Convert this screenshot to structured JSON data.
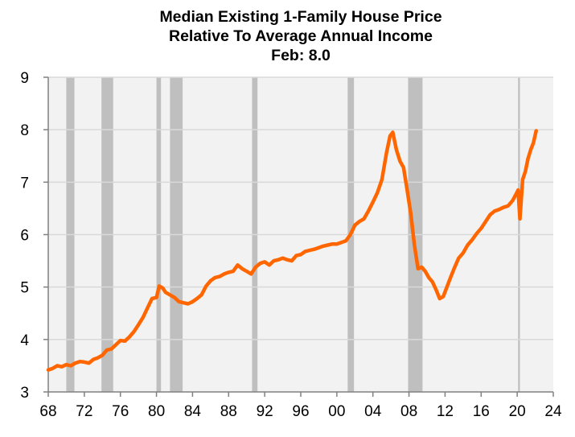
{
  "chart_data": {
    "type": "line",
    "title": "Median Existing 1-Family House Price",
    "subtitle": "Relative To Average Annual Income",
    "annotation": "Feb: 8.0",
    "xlabel": "",
    "ylabel": "",
    "xlim": [
      1968,
      2024
    ],
    "ylim": [
      3,
      9
    ],
    "grid": true,
    "legend": "none",
    "x_ticks": [
      1968,
      1972,
      1976,
      1980,
      1984,
      1988,
      1992,
      1996,
      2000,
      2004,
      2008,
      2012,
      2016,
      2020,
      2024
    ],
    "x_tick_labels": [
      "68",
      "72",
      "76",
      "80",
      "84",
      "88",
      "92",
      "96",
      "00",
      "04",
      "08",
      "12",
      "16",
      "20",
      "24"
    ],
    "y_ticks": [
      3,
      4,
      5,
      6,
      7,
      8,
      9
    ],
    "y_tick_labels": [
      "3",
      "4",
      "5",
      "6",
      "7",
      "8",
      "9"
    ],
    "colors": {
      "line": "#FF6600",
      "plot_bg": "#F2F2F2",
      "recession": "#BFBFBF",
      "grid": "#D9D9D9",
      "axis": "#808080"
    },
    "recessions": [
      [
        1970.0,
        1970.9
      ],
      [
        1973.9,
        1975.2
      ],
      [
        1980.0,
        1980.5
      ],
      [
        1981.5,
        1982.9
      ],
      [
        1990.6,
        1991.2
      ],
      [
        2001.2,
        2001.9
      ],
      [
        2007.9,
        2009.5
      ],
      [
        2020.1,
        2020.3
      ]
    ],
    "series": [
      {
        "name": "Median Existing 1-Family House Price / Average Annual Income",
        "x": [
          1968.0,
          1968.5,
          1969.0,
          1969.5,
          1970.0,
          1970.5,
          1971.0,
          1971.5,
          1972.0,
          1972.5,
          1973.0,
          1973.5,
          1974.0,
          1974.5,
          1975.0,
          1975.5,
          1976.0,
          1976.5,
          1977.0,
          1977.5,
          1978.0,
          1978.5,
          1979.0,
          1979.5,
          1980.0,
          1980.3,
          1980.7,
          1981.0,
          1981.5,
          1982.0,
          1982.5,
          1983.0,
          1983.5,
          1984.0,
          1984.5,
          1985.0,
          1985.5,
          1986.0,
          1986.5,
          1987.0,
          1987.5,
          1988.0,
          1988.5,
          1989.0,
          1989.5,
          1990.0,
          1990.5,
          1991.0,
          1991.5,
          1992.0,
          1992.5,
          1993.0,
          1993.5,
          1994.0,
          1994.5,
          1995.0,
          1995.5,
          1996.0,
          1996.5,
          1997.0,
          1997.5,
          1998.0,
          1998.5,
          1999.0,
          1999.5,
          2000.0,
          2000.5,
          2001.0,
          2001.5,
          2002.0,
          2002.5,
          2003.0,
          2003.5,
          2004.0,
          2004.5,
          2005.0,
          2005.5,
          2005.9,
          2006.2,
          2006.6,
          2007.0,
          2007.4,
          2007.8,
          2008.2,
          2008.6,
          2009.0,
          2009.4,
          2009.8,
          2010.2,
          2010.6,
          2011.0,
          2011.4,
          2011.8,
          2012.2,
          2012.6,
          2013.0,
          2013.5,
          2014.0,
          2014.5,
          2015.0,
          2015.5,
          2016.0,
          2016.5,
          2017.0,
          2017.5,
          2018.0,
          2018.5,
          2019.0,
          2019.5,
          2019.9,
          2020.1,
          2020.3,
          2020.6,
          2020.9,
          2021.2,
          2021.5,
          2021.8,
          2022.1
        ],
        "values": [
          3.42,
          3.45,
          3.5,
          3.48,
          3.52,
          3.5,
          3.55,
          3.58,
          3.57,
          3.55,
          3.62,
          3.65,
          3.7,
          3.8,
          3.82,
          3.9,
          3.98,
          3.97,
          4.05,
          4.15,
          4.28,
          4.42,
          4.6,
          4.78,
          4.8,
          5.02,
          4.98,
          4.9,
          4.85,
          4.8,
          4.72,
          4.7,
          4.68,
          4.72,
          4.78,
          4.85,
          5.02,
          5.12,
          5.18,
          5.2,
          5.25,
          5.28,
          5.3,
          5.42,
          5.35,
          5.3,
          5.25,
          5.38,
          5.45,
          5.48,
          5.42,
          5.5,
          5.52,
          5.55,
          5.52,
          5.5,
          5.6,
          5.62,
          5.68,
          5.7,
          5.72,
          5.75,
          5.78,
          5.8,
          5.82,
          5.82,
          5.85,
          5.88,
          6.0,
          6.18,
          6.25,
          6.3,
          6.45,
          6.62,
          6.8,
          7.05,
          7.55,
          7.88,
          7.95,
          7.62,
          7.4,
          7.28,
          6.85,
          6.4,
          5.8,
          5.35,
          5.38,
          5.3,
          5.18,
          5.1,
          4.95,
          4.78,
          4.82,
          5.0,
          5.18,
          5.35,
          5.55,
          5.65,
          5.8,
          5.9,
          6.02,
          6.12,
          6.25,
          6.38,
          6.45,
          6.48,
          6.52,
          6.55,
          6.65,
          6.78,
          6.85,
          6.3,
          7.05,
          7.2,
          7.45,
          7.62,
          7.75,
          7.98
        ]
      }
    ]
  }
}
